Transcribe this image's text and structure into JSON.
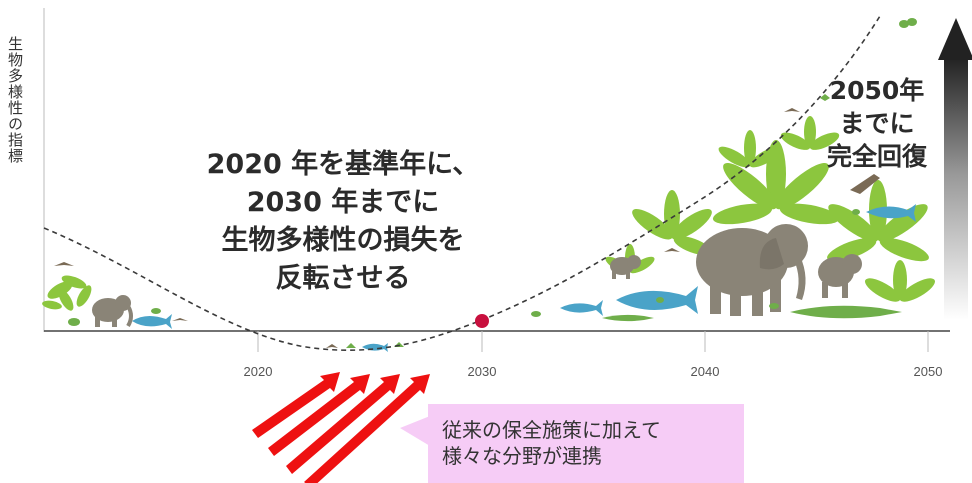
{
  "y_axis_label": "生物多様性の指標",
  "x_axis": {
    "ticks": [
      "2020",
      "2030",
      "2040",
      "2050"
    ]
  },
  "center_message": [
    "2020 年を基準年に、",
    "2030 年までに",
    "生物多様性の損失を",
    "反転させる"
  ],
  "goal_message": [
    "2050年",
    "までに",
    "完全回復"
  ],
  "callout": [
    "従来の保全施策に加えて",
    "様々な分野が連携"
  ],
  "colors": {
    "curve": "#3a3a3a",
    "marker_2030": "#c8103e",
    "arrows": "#ee1111",
    "callout_bg": "#f6ccf6",
    "vegetation": "#8cc63e",
    "animals": "#8a8477",
    "sharks": "#4aa3c8",
    "crocodile": "#6fae4a"
  },
  "illustrations": [
    "leaves-icon",
    "elephant-icon",
    "shark-icon",
    "crocodile-icon",
    "bird-icon",
    "frog-icon",
    "butterfly-icon"
  ]
}
